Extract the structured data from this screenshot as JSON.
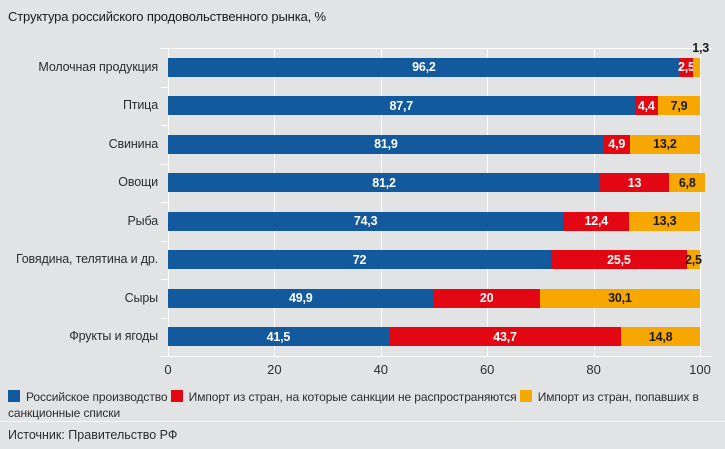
{
  "title": "Структура российского продовольственного рынка, %",
  "source": "Источник: Правительство РФ",
  "colors": {
    "background": "#e2e3e4",
    "gridline": "#ffffff",
    "blue": "#12599d",
    "red": "#e30613",
    "yellow": "#f6a800"
  },
  "chart_data": {
    "type": "bar",
    "orientation": "horizontal",
    "stacked": true,
    "title": "Структура российского продовольственного рынка, %",
    "categories": [
      "Молочная продукция",
      "Птица",
      "Свинина",
      "Овощи",
      "Рыба",
      "Говядина, телятина и др.",
      "Сыры",
      "Фрукты и ягоды"
    ],
    "series": [
      {
        "name": "Российское производство",
        "color": "#12599d",
        "label_color": "#ffffff",
        "values": [
          96.2,
          87.7,
          81.9,
          81.2,
          74.3,
          72,
          49.9,
          41.5
        ]
      },
      {
        "name": "Импорт из стран, на которые санкции не распространяются",
        "color": "#e30613",
        "label_color": "#ffffff",
        "values": [
          2.5,
          4.4,
          4.9,
          13,
          12.4,
          25.5,
          20,
          43.7
        ]
      },
      {
        "name": "Импорт из стран, попавших в санкционные списки",
        "color": "#f6a800",
        "label_color": "#1a1a1a",
        "values": [
          1.3,
          7.9,
          13.2,
          6.8,
          13.3,
          2.5,
          30.1,
          14.8
        ]
      }
    ],
    "xticks": [
      0,
      20,
      40,
      60,
      80,
      100
    ],
    "xlim": [
      0,
      100
    ],
    "grid": true,
    "legend_position": "bottom",
    "decimal_separator": ",",
    "outside_labels": [
      {
        "category_index": 0,
        "series_index": 2,
        "label": "1,3"
      }
    ]
  },
  "legend": {
    "items": [
      {
        "label": "Российское производство",
        "color": "#12599d"
      },
      {
        "label": "Импорт из стран, на которые санкции не распространяются",
        "color": "#e30613"
      },
      {
        "label": "Импорт из стран, попавших в санкционные списки",
        "color": "#f6a800"
      }
    ]
  }
}
